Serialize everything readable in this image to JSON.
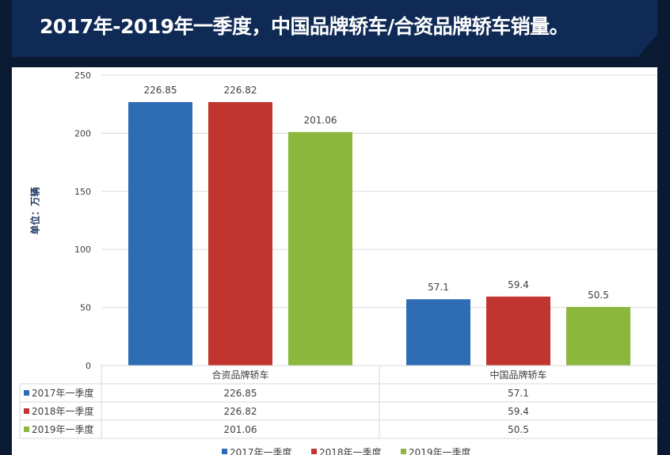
{
  "header": {
    "title": "2017年-2019年一季度，中国品牌轿车/合资品牌轿车销量。"
  },
  "chart_data": {
    "type": "bar",
    "title": "2017年-2019年一季度，中国品牌轿车/合资品牌轿车销量。",
    "ylabel": "单位：万辆",
    "ylim": [
      0,
      250
    ],
    "yticks": [
      0,
      50,
      100,
      150,
      200,
      250
    ],
    "categories": [
      "合资品牌轿车",
      "中国品牌轿车"
    ],
    "series": [
      {
        "name": "2017年一季度",
        "color": "#2e6db4",
        "values": [
          226.85,
          57.1
        ],
        "labels": [
          "226.85",
          "57.1"
        ]
      },
      {
        "name": "2018年一季度",
        "color": "#c0352f",
        "values": [
          226.82,
          59.4
        ],
        "labels": [
          "226.82",
          "59.4"
        ]
      },
      {
        "name": "2019年一季度",
        "color": "#8bb73d",
        "values": [
          201.06,
          50.5
        ],
        "labels": [
          "201.06",
          "50.5"
        ]
      }
    ],
    "grid": true,
    "legend": "bottom",
    "data_table": true
  }
}
